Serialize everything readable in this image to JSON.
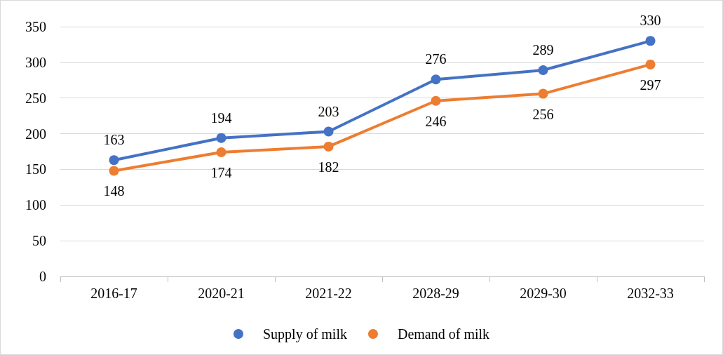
{
  "chart_data": {
    "type": "line",
    "categories": [
      "2016-17",
      "2020-21",
      "2021-22",
      "2028-29",
      "2029-30",
      "2032-33"
    ],
    "series": [
      {
        "name": "Supply of milk",
        "color": "#4472c4",
        "values": [
          163,
          194,
          203,
          276,
          289,
          330
        ]
      },
      {
        "name": "Demand of milk",
        "color": "#ed7d31",
        "values": [
          148,
          174,
          182,
          246,
          256,
          297
        ]
      }
    ],
    "ylim": [
      0,
      350
    ],
    "yticks": [
      0,
      50,
      100,
      150,
      200,
      250,
      300,
      350
    ],
    "grid": "y",
    "legend": "bottom",
    "marker": "circle",
    "line_style": "solid",
    "data_labels": true
  }
}
